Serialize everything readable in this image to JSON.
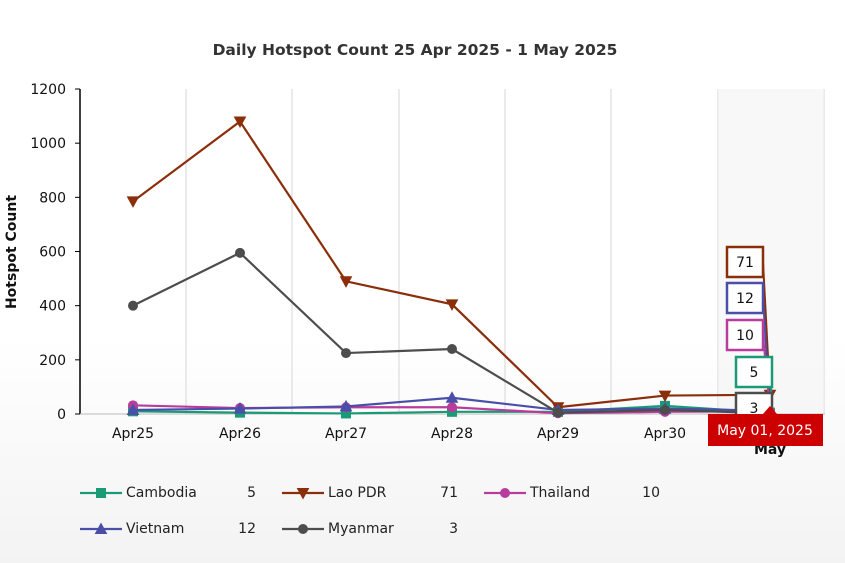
{
  "chart_data": {
    "type": "line",
    "title": "Daily Hotspot Count 25 Apr 2025 - 1 May 2025",
    "xlabel": "",
    "ylabel": "Hotspot Count",
    "categories": [
      "Apr25",
      "Apr26",
      "Apr27",
      "Apr28",
      "Apr29",
      "Apr30",
      "May"
    ],
    "ylim": [
      0,
      1200
    ],
    "yticks": [
      0,
      200,
      400,
      600,
      800,
      1000,
      1200
    ],
    "grid": "vertical",
    "legend_position": "bottom",
    "series": [
      {
        "name": "Cambodia",
        "color": "#1a9b78",
        "marker": "square",
        "values": [
          10,
          5,
          2,
          8,
          8,
          30,
          5
        ],
        "latest": "5"
      },
      {
        "name": "Lao PDR",
        "color": "#8b2e0b",
        "marker": "triangle-down",
        "values": [
          785,
          1080,
          490,
          405,
          25,
          68,
          71
        ],
        "latest": "71"
      },
      {
        "name": "Thailand",
        "color": "#b83c9c",
        "marker": "circle",
        "values": [
          32,
          22,
          25,
          25,
          3,
          8,
          10
        ],
        "latest": "10"
      },
      {
        "name": "Vietnam",
        "color": "#4a4ea8",
        "marker": "triangle-up",
        "values": [
          15,
          20,
          28,
          60,
          15,
          20,
          12
        ],
        "latest": "12"
      },
      {
        "name": "Myanmar",
        "color": "#4d4d4d",
        "marker": "circle",
        "values": [
          400,
          595,
          225,
          240,
          5,
          15,
          3
        ],
        "latest": "3"
      }
    ],
    "value_labels": [
      "71",
      "12",
      "10",
      "5",
      "3"
    ],
    "tooltip": {
      "text": "May 01, 2025",
      "color": "#cc0000"
    }
  }
}
